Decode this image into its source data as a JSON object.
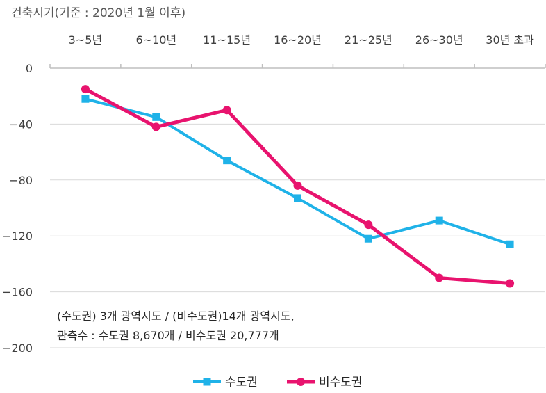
{
  "chart_data": {
    "type": "line",
    "title": "",
    "axis_title": "건축시기(기준 : 2020년 1월 이후)",
    "categories": [
      "3~5년",
      "6~10년",
      "11~15년",
      "16~20년",
      "21~25년",
      "26~30년",
      "30년 초과"
    ],
    "x_axis_position": "top",
    "ylim": [
      -200,
      0
    ],
    "yticks": [
      0,
      -40,
      -80,
      -120,
      -160,
      -200
    ],
    "grid": true,
    "legend_position": "bottom-center",
    "series": [
      {
        "name": "수도권",
        "color": "#1fb2e8",
        "marker": "square",
        "values": [
          -22,
          -35,
          -66,
          -93,
          -122,
          -109,
          -126
        ]
      },
      {
        "name": "비수도권",
        "color": "#e8136e",
        "marker": "circle",
        "values": [
          -15,
          -42,
          -30,
          -84,
          -112,
          -150,
          -154
        ]
      }
    ],
    "annotation": [
      "(수도권) 3개 광역시도 / (비수도권)14개 광역시도,",
      "관측수 : 수도권 8,670개 / 비수도권 20,777개"
    ]
  }
}
